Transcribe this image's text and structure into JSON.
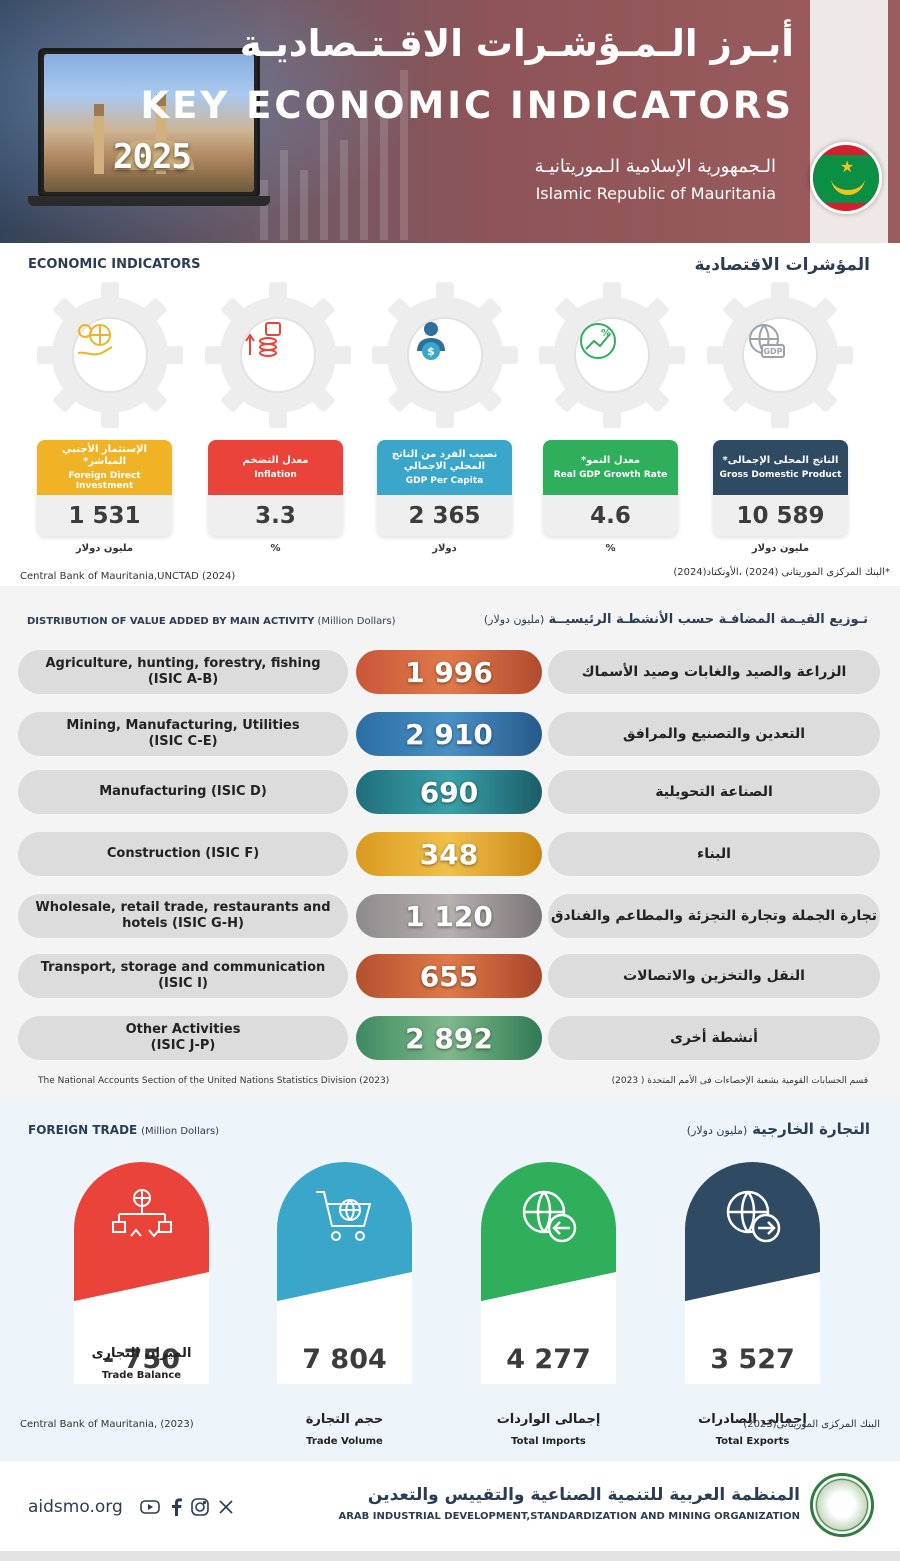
{
  "header": {
    "title_ar": "أبـرز الـمـؤشـرات الاقـتـصاديـة",
    "title_en": "KEY ECONOMIC INDICATORS",
    "country_ar": "الـجمهورية الإسلامية الـموريتانيـة",
    "country_en": "Islamic Republic of Mauritania",
    "year": "2025"
  },
  "economic": {
    "title_en": "ECONOMIC INDICATORS",
    "title_ar": "المؤشرات الاقتصادية",
    "cards": [
      {
        "label_ar": "الإستثمار الأجنبي المباشر*",
        "label_en": "Foreign Direct Investment",
        "value": "1 531",
        "unit": "مليون دولار",
        "color": "#f0b325",
        "icon": "globe-hand-icon"
      },
      {
        "label_ar": "معدل التضخم",
        "label_en": "Inflation",
        "value": "3.3",
        "unit": "%",
        "color": "#e9433a",
        "icon": "inflation-coins-icon"
      },
      {
        "label_ar": "نصيب الفرد من الناتج المحلي الاجمالي",
        "label_en": "GDP Per Capita",
        "value": "2 365",
        "unit": "دولار",
        "color": "#3aa6c9",
        "icon": "person-dollar-icon"
      },
      {
        "label_ar": "معدل النمو*",
        "label_en": "Real GDP Growth Rate",
        "value": "4.6",
        "unit": "%",
        "color": "#2fae5b",
        "icon": "growth-percent-icon"
      },
      {
        "label_ar": "الناتج المحلى الإجمالى*",
        "label_en": "Gross Domestic Product",
        "value": "10 589",
        "unit": "مليون دولار",
        "color": "#2f4a63",
        "icon": "gdp-globe-icon"
      }
    ],
    "source_en": "Central Bank of Mauritania,UNCTAD (2024)",
    "source_ar": "*البنك المركزى الموريتانى (2024) ،الأونكتاد(2024)"
  },
  "distribution": {
    "title_en": "DISTRIBUTION OF VALUE ADDED BY  MAIN ACTIVITY",
    "unit_en": "(Million Dollars)",
    "title_ar": "تـوزيع القيـمة المضافـة حسب الأنشطـة الرئيسيــة",
    "unit_ar": "(مليون دولار)",
    "rows": [
      {
        "en_line1": "Agriculture, hunting, forestry, fishing",
        "en_line2": "(ISIC A-B)",
        "ar": "الزراعة والصيد والغابات وصيد الأسماك",
        "value": "1 996"
      },
      {
        "en_line1": "Mining, Manufacturing, Utilities",
        "en_line2": "(ISIC C-E)",
        "ar": "التعدين والتصنيع والمرافق",
        "value": "2 910"
      },
      {
        "en_line1": "Manufacturing (ISIC D)",
        "en_line2": "",
        "ar": "الصناعة التحويلية",
        "value": "690"
      },
      {
        "en_line1": "Construction (ISIC F)",
        "en_line2": "",
        "ar": "البناء",
        "value": "348"
      },
      {
        "en_line1": "Wholesale, retail trade, restaurants and",
        "en_line2": "hotels (ISIC G-H)",
        "ar": "تجارة الجملة وتجارة التجزئة والمطاعم والفنادق",
        "value": "1 120"
      },
      {
        "en_line1": "Transport, storage and communication",
        "en_line2": "(ISIC I)",
        "ar": "النقل والتخزين والاتصالات",
        "value": "655"
      },
      {
        "en_line1": "Other Activities",
        "en_line2": "(ISIC J-P)",
        "ar": "أنشطة أخرى",
        "value": "2 892"
      }
    ],
    "source_en": "The National Accounts Section of the United Nations Statistics Division (2023)",
    "source_ar": "قسم الحسابات القومية بشعبة الإحصاءات فى الأمم المتحدة ( 2023)"
  },
  "trade": {
    "title_en": "FOREIGN TRADE",
    "unit_en": "(Million Dollars)",
    "title_ar": "التجارة الخارجية",
    "unit_ar": "(مليون دولار)",
    "cards": [
      {
        "value": "- 750",
        "label_ar": "الميزان التجارى",
        "label_en": "Trade Balance",
        "color": "#e9433a",
        "icon": "balance-network-icon"
      },
      {
        "value": "7 804",
        "label_ar": "حجم التجارة",
        "label_en": "Trade Volume",
        "color": "#3aa6c9",
        "icon": "cart-globe-icon"
      },
      {
        "value": "4 277",
        "label_ar": "إجمالى الواردات",
        "label_en": "Total Imports",
        "color": "#2fae5b",
        "icon": "globe-arrow-in-icon"
      },
      {
        "value": "3 527",
        "label_ar": "إجمالى الصادرات",
        "label_en": "Total Exports",
        "color": "#2f4a63",
        "icon": "globe-arrow-out-icon"
      }
    ],
    "source_en": "Central Bank of Mauritania, (2023)",
    "source_ar": "البنك المركزى الموريتانى(2023)"
  },
  "footer": {
    "site": "aidsmo.org",
    "org_ar": "المنظمة العربية للتنمية الصناعية والتقييس والتعدين",
    "org_en": "ARAB INDUSTRIAL DEVELOPMENT,STANDARDIZATION AND MINING ORGANIZATION"
  }
}
